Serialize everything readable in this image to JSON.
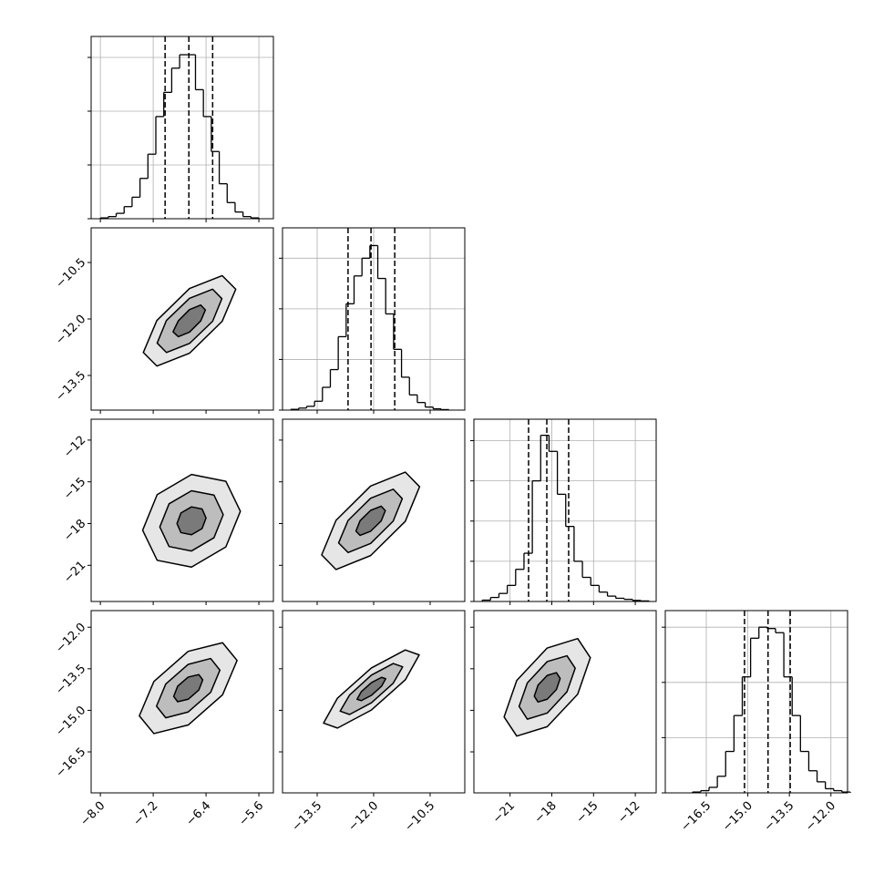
{
  "chart_data": {
    "type": "corner",
    "grid": true,
    "line_color": "#000000",
    "contour_fills": [
      "#e6e6e6",
      "#bdbdbd",
      "#7a7a7a"
    ],
    "axes": [
      {
        "lim": [
          -8.14,
          -5.38
        ],
        "ticks": [
          {
            "value": -8.0,
            "label": "−8.0"
          },
          {
            "value": -7.2,
            "label": "−7.2"
          },
          {
            "value": -6.4,
            "label": "−6.4"
          },
          {
            "value": -5.6,
            "label": "−5.6"
          }
        ]
      },
      {
        "lim": [
          -14.42,
          -9.58
        ],
        "ticks": [
          {
            "value": -13.5,
            "label": "−13.5"
          },
          {
            "value": -12.0,
            "label": "−12.0"
          },
          {
            "value": -10.5,
            "label": "−10.5"
          }
        ]
      },
      {
        "lim": [
          -23.6,
          -10.5
        ],
        "ticks": [
          {
            "value": -21,
            "label": "−21"
          },
          {
            "value": -18,
            "label": "−18"
          },
          {
            "value": -15,
            "label": "−15"
          },
          {
            "value": -12,
            "label": "−12"
          }
        ]
      },
      {
        "lim": [
          -17.98,
          -11.4
        ],
        "ticks": [
          {
            "value": -16.5,
            "label": "−16.5"
          },
          {
            "value": -15.0,
            "label": "−15.0"
          },
          {
            "value": -13.5,
            "label": "−13.5"
          },
          {
            "value": -12.0,
            "label": "−12.0"
          }
        ]
      }
    ],
    "histograms": [
      {
        "bins": [
          -8.0,
          -7.88,
          -7.76,
          -7.64,
          -7.52,
          -7.4,
          -7.28,
          -7.16,
          -7.04,
          -6.92,
          -6.8,
          -6.68,
          -6.56,
          -6.44,
          -6.32,
          -6.2,
          -6.08,
          -5.96,
          -5.84,
          -5.72,
          -5.6
        ],
        "counts": [
          3,
          8,
          20,
          45,
          80,
          150,
          240,
          380,
          470,
          560,
          610,
          610,
          480,
          380,
          250,
          130,
          60,
          25,
          8,
          3
        ],
        "ylim": [
          0,
          678
        ],
        "yticks": [
          0,
          200,
          400,
          600
        ],
        "quantiles": [
          -7.02,
          -6.66,
          -6.3
        ]
      },
      {
        "bins": [
          -14.2,
          -13.99,
          -13.78,
          -13.57,
          -13.36,
          -13.15,
          -12.94,
          -12.73,
          -12.52,
          -12.31,
          -12.1,
          -11.89,
          -11.68,
          -11.47,
          -11.26,
          -11.05,
          -10.84,
          -10.63,
          -10.42,
          -10.21,
          -10.0
        ],
        "counts": [
          3,
          8,
          15,
          35,
          90,
          160,
          290,
          420,
          530,
          600,
          650,
          520,
          380,
          240,
          130,
          60,
          30,
          12,
          5,
          2
        ],
        "ylim": [
          0,
          720
        ],
        "yticks": [
          0,
          200,
          400,
          600
        ],
        "quantiles": [
          -12.68,
          -12.07,
          -11.44
        ]
      },
      {
        "bins": [
          -23,
          -22.4,
          -21.8,
          -21.2,
          -20.6,
          -20,
          -19.4,
          -18.8,
          -18.2,
          -17.6,
          -17,
          -16.4,
          -15.8,
          -15.2,
          -14.6,
          -14,
          -13.4,
          -12.8,
          -12.2,
          -11.6,
          -11
        ],
        "counts": [
          5,
          15,
          30,
          60,
          120,
          180,
          450,
          620,
          560,
          400,
          280,
          150,
          90,
          60,
          35,
          20,
          12,
          8,
          4,
          2
        ],
        "ylim": [
          0,
          680
        ],
        "yticks": [
          0,
          150,
          300,
          450,
          600
        ],
        "quantiles": [
          -19.67,
          -18.36,
          -16.79
        ]
      },
      {
        "bins": [
          -17,
          -16.7,
          -16.4,
          -16.1,
          -15.8,
          -15.5,
          -15.2,
          -14.9,
          -14.6,
          -14.3,
          -14,
          -13.7,
          -13.4,
          -13.1,
          -12.8,
          -12.5,
          -12.2,
          -11.9,
          -11.6,
          -11.3
        ],
        "counts": [
          3,
          8,
          20,
          60,
          150,
          280,
          420,
          560,
          600,
          595,
          580,
          420,
          280,
          150,
          80,
          40,
          15,
          8,
          3
        ],
        "ylim": [
          0,
          660
        ],
        "yticks": [
          0,
          200,
          400,
          600
        ],
        "quantiles": [
          -15.12,
          -14.27,
          -13.47
        ]
      }
    ],
    "pairs": [
      {
        "contours": [
          {
            "x": [
              -5.95,
              -6.155,
              -6.65,
              -7.145,
              -7.35,
              -7.145,
              -6.65,
              -6.155
            ],
            "y": [
              -11.21,
              -10.85,
              -11.19,
              -12.04,
              -12.89,
              -13.25,
              -12.91,
              -12.06
            ]
          },
          {
            "x": [
              -6.16,
              -6.3,
              -6.65,
              -7.0,
              -7.14,
              -7.0,
              -6.65,
              -6.3
            ],
            "y": [
              -11.46,
              -11.21,
              -11.45,
              -12.04,
              -12.64,
              -12.89,
              -12.65,
              -12.06
            ]
          },
          {
            "x": [
              -6.41,
              -6.48,
              -6.65,
              -6.82,
              -6.9,
              -6.82,
              -6.65,
              -6.48
            ],
            "y": [
              -11.76,
              -11.63,
              -11.75,
              -12.05,
              -12.34,
              -12.47,
              -12.35,
              -12.05
            ]
          }
        ]
      },
      {
        "contours": [
          {
            "x": [
              -5.88,
              -6.1,
              -6.62,
              -7.14,
              -7.36,
              -7.14,
              -6.62,
              -6.1
            ],
            "y": [
              -17.12,
              -14.96,
              -14.47,
              -15.92,
              -18.48,
              -20.64,
              -21.13,
              -19.68
            ]
          },
          {
            "x": [
              -6.14,
              -6.28,
              -6.62,
              -6.96,
              -7.1,
              -6.96,
              -6.62,
              -6.28
            ],
            "y": [
              -17.36,
              -15.95,
              -15.64,
              -16.58,
              -18.24,
              -19.65,
              -19.97,
              -19.02
            ]
          },
          {
            "x": [
              -6.4,
              -6.46,
              -6.62,
              -6.78,
              -6.84,
              -6.78,
              -6.62,
              -6.46
            ],
            "y": [
              -17.6,
              -16.95,
              -16.8,
              -17.24,
              -18.0,
              -18.65,
              -18.8,
              -18.36
            ]
          }
        ]
      },
      {
        "contours": [
          {
            "x": [
              -10.78,
              -11.16,
              -12.08,
              -13.0,
              -13.38,
              -13.0,
              -12.08,
              -11.16
            ],
            "y": [
              -15.35,
              -14.3,
              -15.3,
              -17.77,
              -20.25,
              -21.3,
              -20.3,
              -17.84
            ]
          },
          {
            "x": [
              -11.24,
              -11.48,
              -12.08,
              -12.68,
              -12.93,
              -12.68,
              -12.08,
              -11.48
            ],
            "y": [
              -16.21,
              -15.53,
              -16.18,
              -17.78,
              -19.39,
              -20.08,
              -19.43,
              -17.82
            ]
          },
          {
            "x": [
              -11.69,
              -11.8,
              -12.08,
              -12.36,
              -12.47,
              -12.36,
              -12.08,
              -11.8
            ],
            "y": [
              -17.07,
              -16.75,
              -17.05,
              -17.79,
              -18.54,
              -18.85,
              -18.55,
              -17.81
            ]
          }
        ]
      },
      {
        "contours": [
          {
            "x": [
              -5.93,
              -6.15,
              -6.67,
              -7.19,
              -7.41,
              -7.19,
              -6.67,
              -6.15
            ],
            "y": [
              -13.2,
              -12.56,
              -12.87,
              -13.96,
              -15.2,
              -15.84,
              -15.53,
              -14.44
            ]
          },
          {
            "x": [
              -6.19,
              -6.33,
              -6.67,
              -7.01,
              -7.15,
              -7.01,
              -6.67,
              -6.33
            ],
            "y": [
              -13.55,
              -13.13,
              -13.34,
              -14.05,
              -14.85,
              -15.27,
              -15.06,
              -14.35
            ]
          },
          {
            "x": [
              -6.45,
              -6.51,
              -6.67,
              -6.83,
              -6.89,
              -6.83,
              -6.67,
              -6.51
            ],
            "y": [
              -13.9,
              -13.71,
              -13.8,
              -14.13,
              -14.5,
              -14.69,
              -14.6,
              -14.27
            ]
          }
        ]
      },
      {
        "contours": [
          {
            "x": [
              -10.79,
              -11.16,
              -12.06,
              -12.96,
              -13.33,
              -12.96,
              -12.06,
              -11.16
            ],
            "y": [
              -13.0,
              -12.82,
              -13.47,
              -14.56,
              -15.46,
              -15.64,
              -14.99,
              -13.9
            ]
          },
          {
            "x": [
              -11.23,
              -11.48,
              -12.06,
              -12.64,
              -12.89,
              -12.64,
              -12.06,
              -11.48
            ],
            "y": [
              -13.43,
              -13.31,
              -13.73,
              -14.45,
              -15.03,
              -15.15,
              -14.73,
              -14.02
            ]
          },
          {
            "x": [
              -11.68,
              -11.79,
              -12.06,
              -12.33,
              -12.44,
              -12.33,
              -12.06,
              -11.79
            ],
            "y": [
              -13.86,
              -13.81,
              -14.0,
              -14.33,
              -14.6,
              -14.65,
              -14.46,
              -14.13
            ]
          }
        ]
      },
      {
        "contours": [
          {
            "x": [
              -15.23,
              -16.14,
              -18.33,
              -20.52,
              -21.43,
              -20.52,
              -18.33,
              -16.14
            ],
            "y": [
              -13.1,
              -12.41,
              -12.75,
              -13.92,
              -15.24,
              -15.93,
              -15.59,
              -14.42
            ]
          },
          {
            "x": [
              -16.32,
              -16.91,
              -18.33,
              -19.76,
              -20.35,
              -19.76,
              -18.33,
              -16.91
            ],
            "y": [
              -13.48,
              -13.03,
              -13.24,
              -14.01,
              -14.86,
              -15.32,
              -15.1,
              -14.33
            ]
          },
          {
            "x": [
              -17.4,
              -17.67,
              -18.33,
              -18.99,
              -19.26,
              -18.99,
              -18.33,
              -17.67
            ],
            "y": [
              -13.85,
              -13.64,
              -13.74,
              -14.09,
              -14.49,
              -14.7,
              -14.6,
              -14.25
            ]
          }
        ]
      }
    ]
  }
}
